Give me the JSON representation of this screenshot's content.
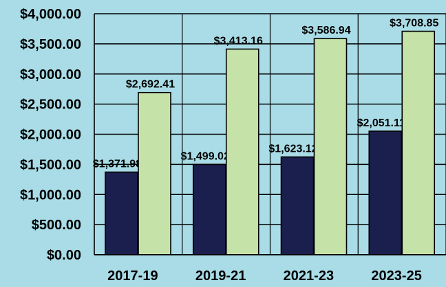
{
  "chart_data": {
    "type": "bar",
    "categories": [
      "2017-19",
      "2019-21",
      "2021-23",
      "2023-25"
    ],
    "series": [
      {
        "values": [
          1371.98,
          1499.02,
          1623.12,
          2051.11
        ],
        "labels": [
          "$1,371.98",
          "$1,499.02",
          "$1,623.12",
          "$2,051.11"
        ],
        "color": "#1b1f4e"
      },
      {
        "values": [
          2692.41,
          3413.16,
          3586.94,
          3708.85
        ],
        "labels": [
          "$2,692.41",
          "$3,413.16",
          "$3,586.94",
          "$3,708.85"
        ],
        "color": "#c5e2a8"
      }
    ],
    "ylim": [
      0,
      4000
    ],
    "yticks": [
      0,
      500,
      1000,
      1500,
      2000,
      2500,
      3000,
      3500,
      4000
    ],
    "ytick_labels": [
      "$0.00",
      "$500.00",
      "$1,000.00",
      "$1,500.00",
      "$2,000.00",
      "$2,500.00",
      "$3,000.00",
      "$3,500.00",
      "$4,000.00"
    ],
    "grid": true,
    "background_color": "#a9dce6",
    "title": "",
    "xlabel": "",
    "ylabel": ""
  }
}
